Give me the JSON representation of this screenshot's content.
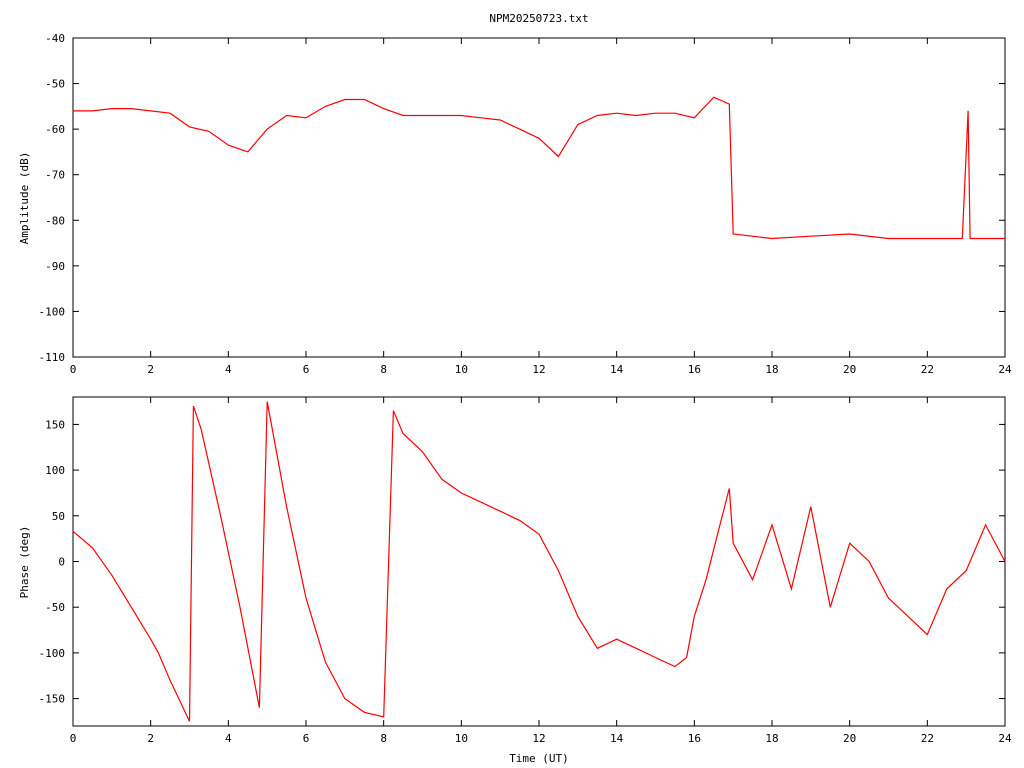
{
  "chart_data": [
    {
      "type": "line",
      "title": "NPM20250723.txt",
      "xlabel": "",
      "ylabel": "Amplitude (dB)",
      "xlim": [
        0,
        24
      ],
      "ylim": [
        -110,
        -40
      ],
      "x_ticks": [
        "0",
        "2",
        "4",
        "6",
        "8",
        "10",
        "12",
        "14",
        "16",
        "18",
        "20",
        "22",
        "24"
      ],
      "y_ticks": [
        "-40",
        "-50",
        "-60",
        "-70",
        "-80",
        "-90",
        "-100",
        "-110"
      ],
      "grid": false,
      "legend": "none",
      "series": [
        {
          "color": "#ff0000",
          "x": [
            0.0,
            0.5,
            1.0,
            1.5,
            2.0,
            2.5,
            3.0,
            3.5,
            4.0,
            4.5,
            5.0,
            5.5,
            6.0,
            6.5,
            7.0,
            7.5,
            8.0,
            8.5,
            9.0,
            9.5,
            10.0,
            10.5,
            11.0,
            11.5,
            12.0,
            12.5,
            13.0,
            13.5,
            14.0,
            14.5,
            15.0,
            15.5,
            16.0,
            16.5,
            16.9,
            17.0,
            18.0,
            19.0,
            20.0,
            21.0,
            22.0,
            22.9,
            23.05,
            23.1,
            24.0
          ],
          "y": [
            -56,
            -56,
            -55.5,
            -55.5,
            -56,
            -56.5,
            -59.5,
            -60.5,
            -63.5,
            -65,
            -60,
            -57,
            -57.5,
            -55,
            -53.5,
            -53.5,
            -55.5,
            -57,
            -57,
            -57,
            -57,
            -57.5,
            -58,
            -60,
            -62,
            -66,
            -59,
            -57,
            -56.5,
            -57,
            -56.5,
            -56.5,
            -57.5,
            -53,
            -54.5,
            -83,
            -84,
            -83.5,
            -83,
            -84,
            -84,
            -84,
            -56,
            -84,
            -84
          ]
        }
      ]
    },
    {
      "type": "line",
      "title": "",
      "xlabel": "Time (UT)",
      "ylabel": "Phase (deg)",
      "xlim": [
        0,
        24
      ],
      "ylim": [
        -180,
        180
      ],
      "x_ticks": [
        "0",
        "2",
        "4",
        "6",
        "8",
        "10",
        "12",
        "14",
        "16",
        "18",
        "20",
        "22",
        "24"
      ],
      "y_ticks": [
        "150",
        "100",
        "50",
        "0",
        "-50",
        "-100",
        "-150"
      ],
      "grid": false,
      "legend": "none",
      "series": [
        {
          "color": "#ff0000",
          "x": [
            0.0,
            0.5,
            1.0,
            1.5,
            2.0,
            2.2,
            2.5,
            3.0,
            3.1,
            3.3,
            3.8,
            4.3,
            4.8,
            5.0,
            5.5,
            6.0,
            6.5,
            7.0,
            7.5,
            8.0,
            8.25,
            8.5,
            9.0,
            9.5,
            10.0,
            10.5,
            11.0,
            11.5,
            12.0,
            12.5,
            13.0,
            13.5,
            14.0,
            14.5,
            15.0,
            15.5,
            15.8,
            16.0,
            16.3,
            16.6,
            16.9,
            17.0,
            17.5,
            18.0,
            18.5,
            19.0,
            19.5,
            20.0,
            20.5,
            21.0,
            21.5,
            22.0,
            22.5,
            23.0,
            23.5,
            24.0
          ],
          "y": [
            33,
            15,
            -15,
            -50,
            -85,
            -100,
            -130,
            -175,
            170,
            145,
            50,
            -50,
            -160,
            175,
            60,
            -40,
            -110,
            -150,
            -165,
            -170,
            165,
            140,
            120,
            90,
            75,
            65,
            55,
            45,
            30,
            -10,
            -60,
            -95,
            -85,
            -95,
            -105,
            -115,
            -105,
            -60,
            -20,
            30,
            80,
            20,
            -20,
            40,
            -30,
            60,
            -50,
            20,
            0,
            -40,
            -60,
            -80,
            -30,
            -10,
            40,
            0
          ]
        }
      ]
    }
  ]
}
